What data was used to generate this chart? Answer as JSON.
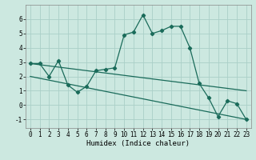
{
  "xlabel": "Humidex (Indice chaleur)",
  "bg_color": "#cce8e0",
  "line_color": "#1a6b5a",
  "grid_color": "#aacfc8",
  "xlim": [
    -0.5,
    23.5
  ],
  "ylim": [
    -1.6,
    7.0
  ],
  "xticks": [
    0,
    1,
    2,
    3,
    4,
    5,
    6,
    7,
    8,
    9,
    10,
    11,
    12,
    13,
    14,
    15,
    16,
    17,
    18,
    19,
    20,
    21,
    22,
    23
  ],
  "yticks": [
    -1,
    0,
    1,
    2,
    3,
    4,
    5,
    6
  ],
  "line1_x": [
    0,
    1,
    2,
    3,
    4,
    5,
    6,
    7,
    8,
    9,
    10,
    11,
    12,
    13,
    14,
    15,
    16,
    17,
    18,
    19,
    20,
    21,
    22,
    23
  ],
  "line1_y": [
    2.9,
    2.9,
    2.0,
    3.1,
    1.4,
    0.9,
    1.3,
    2.4,
    2.5,
    2.6,
    4.9,
    5.1,
    6.3,
    5.0,
    5.2,
    5.5,
    5.5,
    4.0,
    1.5,
    0.5,
    -0.8,
    0.3,
    0.1,
    -1.0
  ],
  "line2_x": [
    0,
    23
  ],
  "line2_y": [
    2.9,
    1.0
  ],
  "line3_x": [
    0,
    23
  ],
  "line3_y": [
    2.0,
    -1.0
  ],
  "xlabel_fontsize": 6.5,
  "tick_fontsize": 5.5,
  "marker_size": 2.2,
  "linewidth": 0.9
}
